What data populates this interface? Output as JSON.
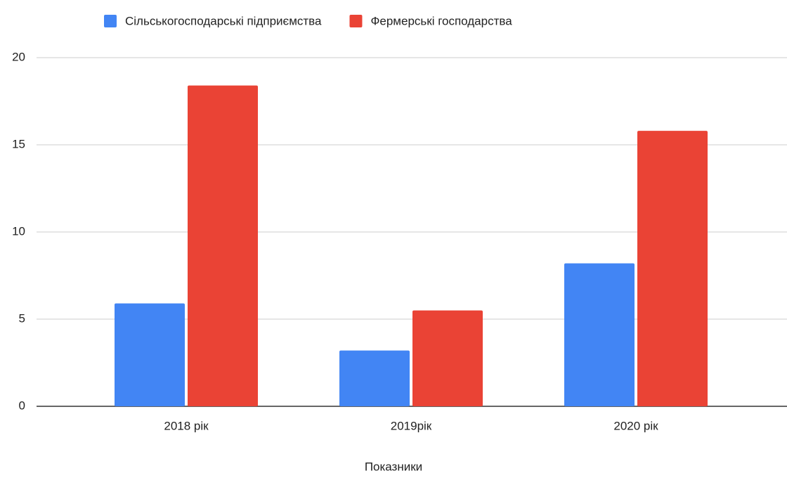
{
  "chart_data": {
    "type": "bar",
    "x_label": "Показники",
    "categories": [
      "2018 рік",
      "2019рік",
      "2020 рік"
    ],
    "series": [
      {
        "name": "Сільськогосподарські підприємства",
        "color": "#4285f4",
        "values": [
          5.9,
          3.2,
          8.2
        ]
      },
      {
        "name": "Фермерські господарства",
        "color": "#ea4335",
        "values": [
          18.4,
          5.5,
          15.8
        ]
      }
    ],
    "ylim": [
      0,
      20
    ],
    "yticks": [
      0,
      5,
      10,
      15,
      20
    ],
    "grid": true,
    "legend": "top"
  }
}
